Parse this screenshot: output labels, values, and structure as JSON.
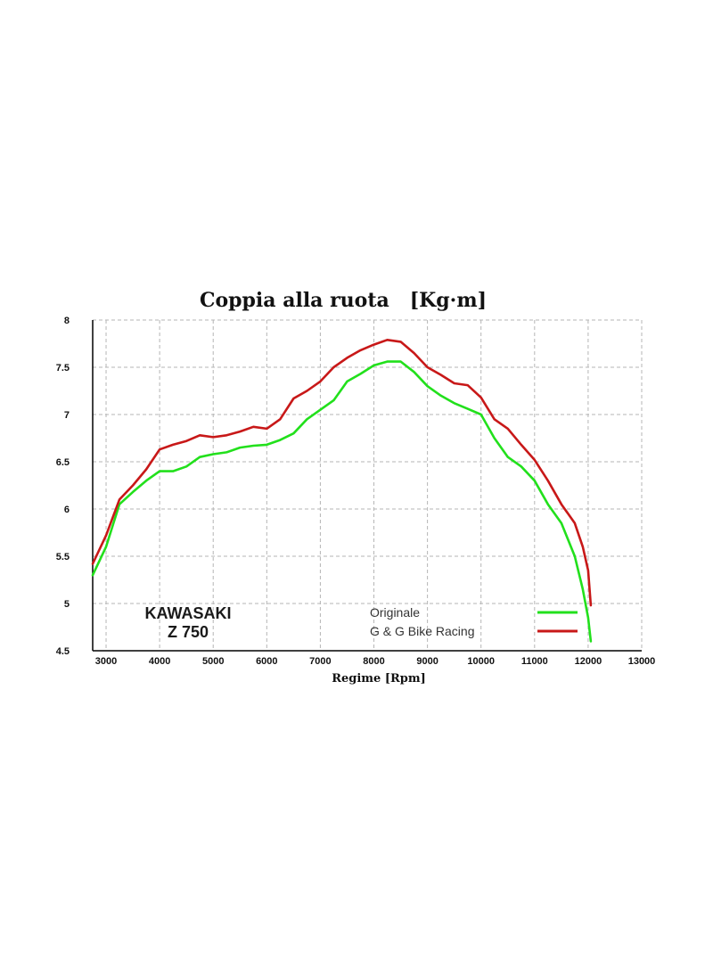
{
  "chart_data": {
    "type": "line",
    "title": "Coppia alla ruota   [Kg·m]",
    "xlabel": "Regime [Rpm]",
    "ylabel": "",
    "xlim": [
      2750,
      13000
    ],
    "ylim": [
      4.5,
      8
    ],
    "xticks": [
      3000,
      4000,
      5000,
      6000,
      7000,
      8000,
      9000,
      10000,
      11000,
      12000,
      13000
    ],
    "yticks": [
      4.5,
      5,
      5.5,
      6,
      6.5,
      7,
      7.5,
      8
    ],
    "grid": true,
    "legend_position": "bottom-right",
    "annotation_lines": [
      "KAWASAKI",
      "Z 750"
    ],
    "series": [
      {
        "name": "Originale",
        "color": "#22e01c",
        "points": [
          [
            2750,
            5.3
          ],
          [
            3000,
            5.6
          ],
          [
            3250,
            6.05
          ],
          [
            3500,
            6.18
          ],
          [
            3750,
            6.3
          ],
          [
            4000,
            6.4
          ],
          [
            4250,
            6.4
          ],
          [
            4500,
            6.45
          ],
          [
            4750,
            6.55
          ],
          [
            5000,
            6.58
          ],
          [
            5250,
            6.6
          ],
          [
            5500,
            6.65
          ],
          [
            5750,
            6.67
          ],
          [
            6000,
            6.68
          ],
          [
            6250,
            6.73
          ],
          [
            6500,
            6.8
          ],
          [
            6750,
            6.95
          ],
          [
            7000,
            7.05
          ],
          [
            7250,
            7.15
          ],
          [
            7500,
            7.35
          ],
          [
            7750,
            7.43
          ],
          [
            8000,
            7.52
          ],
          [
            8250,
            7.56
          ],
          [
            8500,
            7.56
          ],
          [
            8750,
            7.45
          ],
          [
            9000,
            7.3
          ],
          [
            9250,
            7.2
          ],
          [
            9500,
            7.12
          ],
          [
            9750,
            7.06
          ],
          [
            10000,
            7.0
          ],
          [
            10250,
            6.75
          ],
          [
            10500,
            6.55
          ],
          [
            10750,
            6.45
          ],
          [
            11000,
            6.3
          ],
          [
            11250,
            6.05
          ],
          [
            11500,
            5.85
          ],
          [
            11750,
            5.5
          ],
          [
            11900,
            5.15
          ],
          [
            12000,
            4.85
          ],
          [
            12050,
            4.6
          ]
        ]
      },
      {
        "name": "G & G Bike Racing",
        "color": "#c81818",
        "points": [
          [
            2750,
            5.42
          ],
          [
            3000,
            5.72
          ],
          [
            3250,
            6.1
          ],
          [
            3500,
            6.25
          ],
          [
            3750,
            6.42
          ],
          [
            4000,
            6.63
          ],
          [
            4250,
            6.68
          ],
          [
            4500,
            6.72
          ],
          [
            4750,
            6.78
          ],
          [
            5000,
            6.76
          ],
          [
            5250,
            6.78
          ],
          [
            5500,
            6.82
          ],
          [
            5750,
            6.87
          ],
          [
            6000,
            6.85
          ],
          [
            6250,
            6.95
          ],
          [
            6500,
            7.17
          ],
          [
            6750,
            7.25
          ],
          [
            7000,
            7.35
          ],
          [
            7250,
            7.5
          ],
          [
            7500,
            7.6
          ],
          [
            7750,
            7.68
          ],
          [
            8000,
            7.74
          ],
          [
            8250,
            7.79
          ],
          [
            8500,
            7.77
          ],
          [
            8750,
            7.65
          ],
          [
            9000,
            7.5
          ],
          [
            9250,
            7.42
          ],
          [
            9500,
            7.33
          ],
          [
            9750,
            7.31
          ],
          [
            10000,
            7.18
          ],
          [
            10250,
            6.95
          ],
          [
            10500,
            6.85
          ],
          [
            10750,
            6.68
          ],
          [
            11000,
            6.52
          ],
          [
            11250,
            6.3
          ],
          [
            11500,
            6.05
          ],
          [
            11750,
            5.85
          ],
          [
            11900,
            5.6
          ],
          [
            12000,
            5.35
          ],
          [
            12050,
            4.98
          ]
        ]
      }
    ]
  }
}
